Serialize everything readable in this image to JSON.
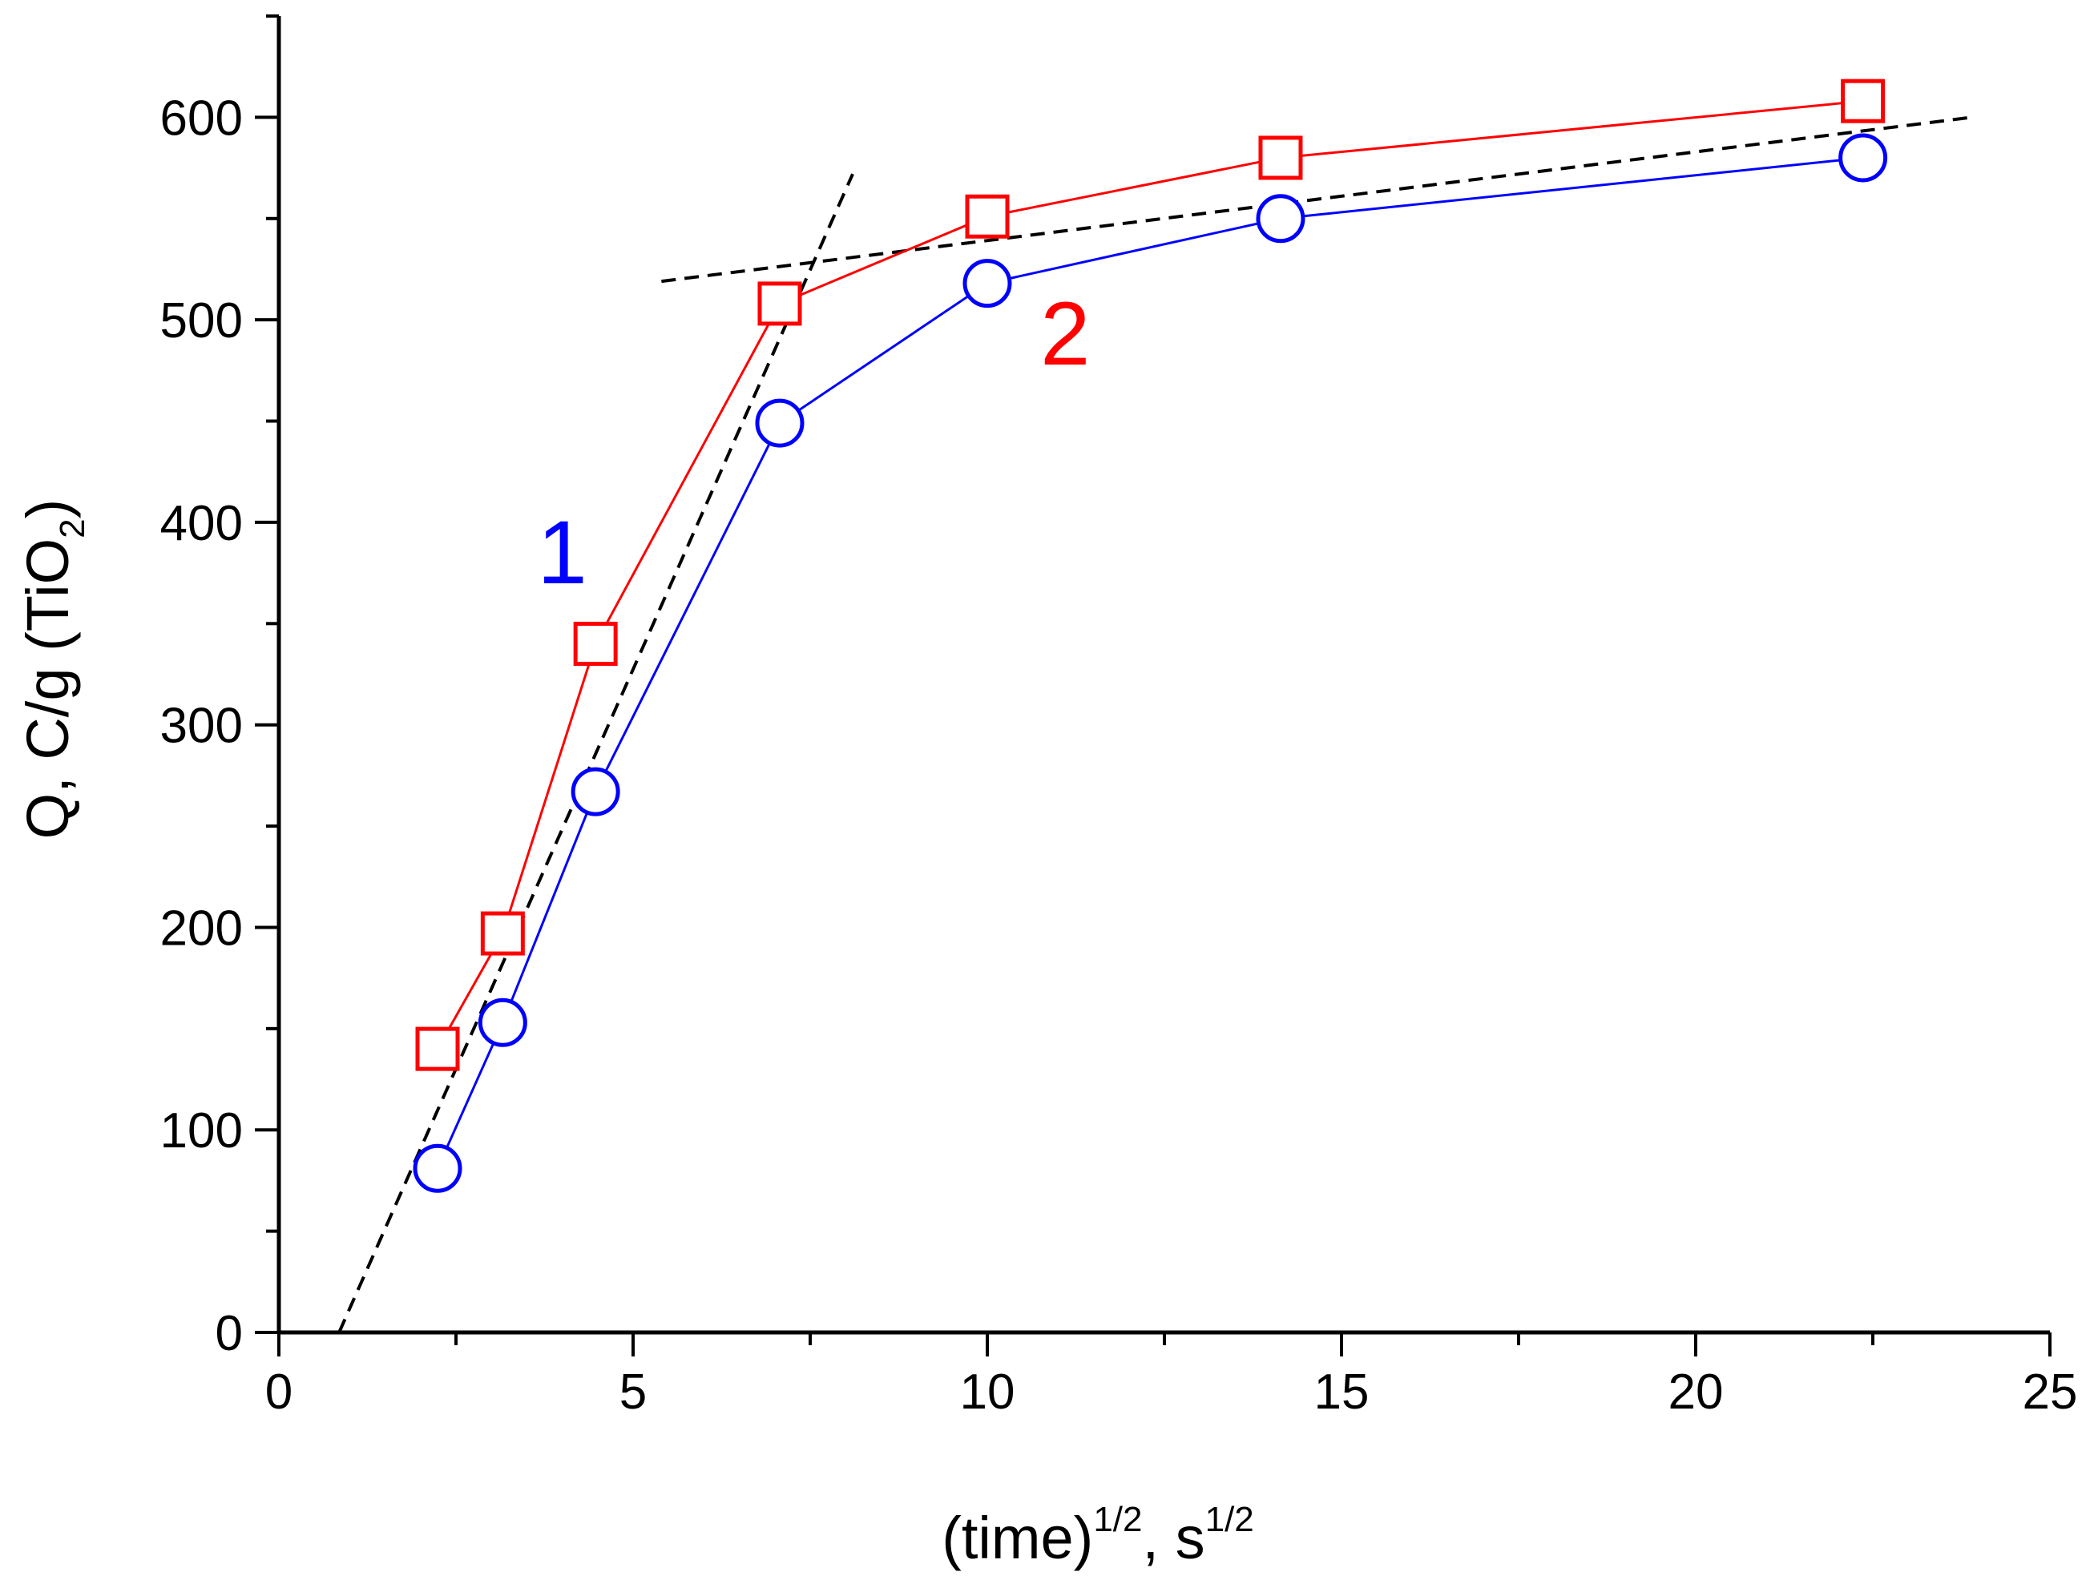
{
  "chart_data": {
    "type": "line",
    "title": "",
    "xlabel": {
      "main": "(time)",
      "sup1": "1/2",
      "sep": ", s",
      "sup2": "1/2"
    },
    "ylabel": {
      "main": "Q, C/g (TiO",
      "sub": "2",
      "close": ")"
    },
    "xlim": [
      0,
      25
    ],
    "ylim": [
      0,
      650
    ],
    "xticks": [
      0,
      5,
      10,
      15,
      20,
      25
    ],
    "xtick_labels": [
      "0",
      "5",
      "10",
      "15",
      "20",
      "25"
    ],
    "yticks": [
      0,
      100,
      200,
      300,
      400,
      500,
      600
    ],
    "ytick_labels": [
      "0",
      "100",
      "200",
      "300",
      "400",
      "500",
      "600"
    ],
    "x_minor_step": 2.5,
    "y_minor_step": 50,
    "grid": false,
    "series": [
      {
        "name": "1",
        "label": "1",
        "color": "#0000ff",
        "marker": "circle",
        "label_at": [
          4.0,
          370
        ],
        "x": [
          2.24,
          3.16,
          4.47,
          7.07,
          10.0,
          14.14,
          22.36
        ],
        "values": [
          81,
          153,
          267,
          449,
          518,
          550,
          580
        ]
      },
      {
        "name": "2",
        "label": "2",
        "color": "#ff0000",
        "marker": "square",
        "label_at": [
          11.1,
          478
        ],
        "x": [
          2.24,
          3.16,
          4.47,
          7.07,
          10.0,
          14.14,
          22.36
        ],
        "values": [
          140,
          197,
          340,
          508,
          551,
          580,
          608
        ]
      }
    ],
    "fit_lines": [
      {
        "name": "initial-slope-fit",
        "color": "#000000",
        "style": "dashed",
        "x": [
          0.85,
          8.1
        ],
        "y": [
          0,
          572
        ]
      },
      {
        "name": "plateau-fit",
        "color": "#000000",
        "style": "dashed",
        "x": [
          5.4,
          23.9
        ],
        "y": [
          519,
          600
        ]
      }
    ]
  }
}
